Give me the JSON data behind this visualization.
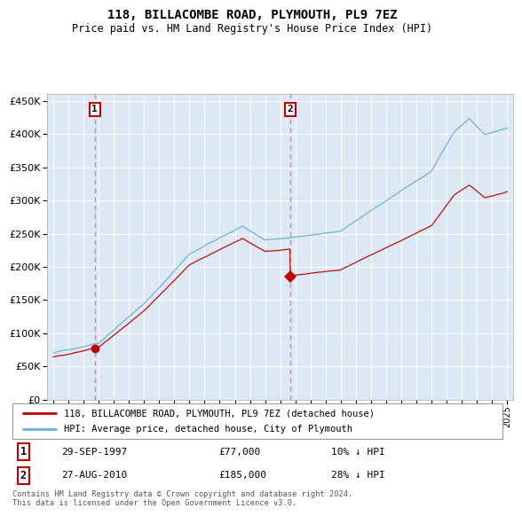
{
  "title": "118, BILLACOMBE ROAD, PLYMOUTH, PL9 7EZ",
  "subtitle": "Price paid vs. HM Land Registry's House Price Index (HPI)",
  "background_color": "#dce9f5",
  "plot_bg_color": "#dce9f5",
  "ylim": [
    0,
    460000
  ],
  "yticks": [
    0,
    50000,
    100000,
    150000,
    200000,
    250000,
    300000,
    350000,
    400000,
    450000
  ],
  "ytick_labels": [
    "£0",
    "£50K",
    "£100K",
    "£150K",
    "£200K",
    "£250K",
    "£300K",
    "£350K",
    "£400K",
    "£450K"
  ],
  "sale1_date": 1997.75,
  "sale1_price": 77000,
  "sale2_date": 2010.66,
  "sale2_price": 185000,
  "legend_line1": "118, BILLACOMBE ROAD, PLYMOUTH, PL9 7EZ (detached house)",
  "legend_line2": "HPI: Average price, detached house, City of Plymouth",
  "annotation1_label": "1",
  "annotation1_date": "29-SEP-1997",
  "annotation1_price": "£77,000",
  "annotation1_hpi": "10% ↓ HPI",
  "annotation2_label": "2",
  "annotation2_date": "27-AUG-2010",
  "annotation2_price": "£185,000",
  "annotation2_hpi": "28% ↓ HPI",
  "footer": "Contains HM Land Registry data © Crown copyright and database right 2024.\nThis data is licensed under the Open Government Licence v3.0.",
  "hpi_color": "#6aaed6",
  "price_color": "#c00000",
  "marker_color": "#c00000",
  "vline_color": "#e88080",
  "grid_color": "#ffffff"
}
